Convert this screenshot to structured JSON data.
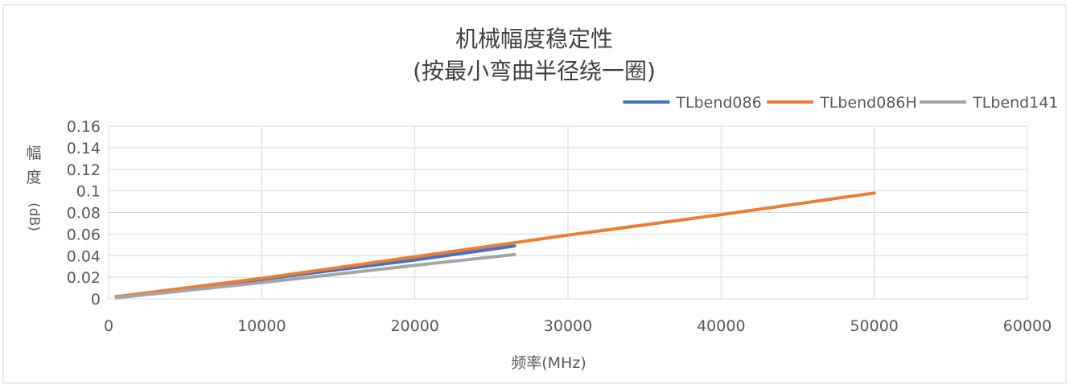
{
  "chart_data": {
    "type": "line",
    "title_lines": [
      "机械幅度稳定性",
      "(按最小弯曲半径绕一圈)"
    ],
    "xlabel": "频率(MHz)",
    "ylabel_lines": [
      "幅",
      "度",
      "(dB)"
    ],
    "xlim": [
      0,
      60000
    ],
    "ylim": [
      0,
      0.16
    ],
    "x_ticks": [
      0,
      10000,
      20000,
      30000,
      40000,
      50000,
      60000
    ],
    "y_ticks": [
      0,
      0.02,
      0.04,
      0.06,
      0.08,
      0.1,
      0.12,
      0.14,
      0.16
    ],
    "x_tick_labels": [
      "0",
      "10000",
      "20000",
      "30000",
      "40000",
      "50000",
      "60000"
    ],
    "y_tick_labels": [
      "0",
      "0.02",
      "0.04",
      "0.06",
      "0.08",
      "0.1",
      "0.12",
      "0.14",
      "0.16"
    ],
    "grid": true,
    "legend_position": "top-right",
    "series": [
      {
        "name": "TLbend086",
        "color": "#4472c4",
        "x": [
          500,
          10000,
          20000,
          26500
        ],
        "y": [
          0.002,
          0.018,
          0.036,
          0.049
        ]
      },
      {
        "name": "TLbend086H",
        "color": "#ed7d31",
        "x": [
          500,
          10000,
          20000,
          30000,
          40000,
          50000
        ],
        "y": [
          0.002,
          0.019,
          0.039,
          0.059,
          0.078,
          0.098
        ]
      },
      {
        "name": "TLbend141",
        "color": "#a5a5a5",
        "x": [
          500,
          10000,
          20000,
          26500
        ],
        "y": [
          0.001,
          0.015,
          0.031,
          0.041
        ]
      }
    ]
  }
}
